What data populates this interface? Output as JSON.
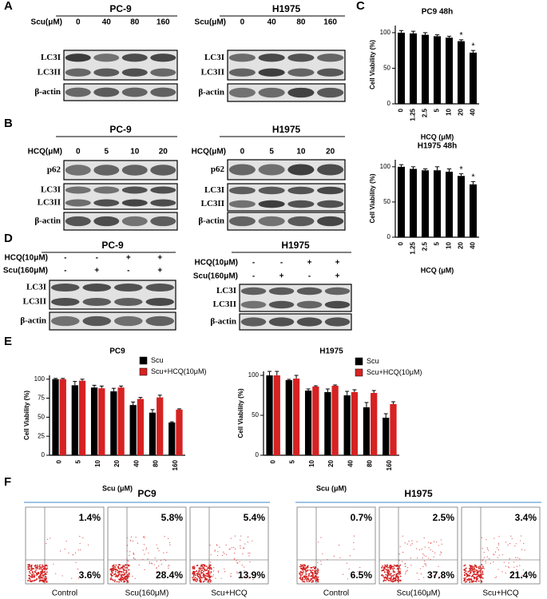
{
  "figure": {
    "panel_labels": [
      "A",
      "B",
      "C",
      "D",
      "E",
      "F"
    ],
    "blots": [
      {
        "title": "PC-9",
        "treatments": [
          {
            "label": "Scu(μM)",
            "levels": [
              "0",
              "40",
              "80",
              "160"
            ]
          }
        ],
        "rows": [
          [
            "LC3I",
            "LC3II"
          ],
          [
            "β-actin"
          ]
        ]
      },
      {
        "title": "H1975",
        "treatments": [
          {
            "label": "Scu(μM)",
            "levels": [
              "0",
              "40",
              "80",
              "160"
            ]
          }
        ],
        "rows": [
          [
            "LC3I",
            "LC3II"
          ],
          [
            "β-actin"
          ]
        ]
      },
      {
        "title": "PC-9",
        "treatments": [
          {
            "label": "HCQ(μM)",
            "levels": [
              "0",
              "5",
              "10",
              "20"
            ]
          }
        ],
        "rows": [
          [
            "p62"
          ],
          [
            "LC3I",
            "LC3II"
          ],
          [
            "β-actin"
          ]
        ]
      },
      {
        "title": "H1975",
        "treatments": [
          {
            "label": "HCQ(μM)",
            "levels": [
              "0",
              "5",
              "10",
              "20"
            ]
          }
        ],
        "rows": [
          [
            "p62"
          ],
          [
            "LC3I",
            "LC3II"
          ],
          [
            "β-actin"
          ]
        ]
      },
      {
        "title": "PC-9",
        "treatments": [
          {
            "label": "HCQ(10μM)",
            "levels": [
              "-",
              "-",
              "+",
              "+"
            ]
          },
          {
            "label": "Scu(160μM)",
            "levels": [
              "-",
              "+",
              "-",
              "+"
            ]
          }
        ],
        "rows": [
          [
            "LC3I",
            "LC3II"
          ],
          [
            "β-actin"
          ]
        ]
      },
      {
        "title": "H1975",
        "treatments": [
          {
            "label": "HCQ(10μM)",
            "levels": [
              "-",
              "-",
              "+",
              "+"
            ]
          },
          {
            "label": "Scu(160μM)",
            "levels": [
              "-",
              "+",
              "-",
              "+"
            ]
          }
        ],
        "rows": [
          [
            "LC3I",
            "LC3II"
          ],
          [
            "β-actin"
          ]
        ]
      }
    ],
    "flow": [
      {
        "title": "PC9",
        "plots": [
          {
            "label": "Control",
            "upper": "1.4%",
            "lower": "3.6%"
          },
          {
            "label": "Scu(160μM)",
            "upper": "5.8%",
            "lower": "28.4%"
          },
          {
            "label": "Scu+HCQ",
            "upper": "5.4%",
            "lower": "13.9%"
          }
        ]
      },
      {
        "title": "H1975",
        "plots": [
          {
            "label": "Control",
            "upper": "0.7%",
            "lower": "6.5%"
          },
          {
            "label": "Scu(160μM)",
            "upper": "2.5%",
            "lower": "37.8%"
          },
          {
            "label": "Scu+HCQ",
            "upper": "3.4%",
            "lower": "21.4%"
          }
        ]
      }
    ]
  },
  "chart_data": [
    {
      "type": "bar",
      "title": "PC9  48h",
      "categories": [
        "0",
        "1.25",
        "2.5",
        "5",
        "10",
        "20",
        "40"
      ],
      "values": [
        100,
        99,
        97,
        95,
        93,
        88,
        72
      ],
      "errors": [
        3,
        3,
        3,
        2,
        2,
        2,
        3
      ],
      "color": "#000000",
      "ylim": [
        0,
        110
      ],
      "yticks": [
        0,
        50,
        100
      ],
      "ylabel": "Cell Viability (%)",
      "xlabel": "HCQ (μM)",
      "annotations": [
        {
          "text": "*",
          "x": "20"
        },
        {
          "text": "*",
          "x": "40"
        }
      ]
    },
    {
      "type": "bar",
      "title": "H1975  48h",
      "categories": [
        "0",
        "1.25",
        "2.5",
        "5",
        "10",
        "20",
        "40"
      ],
      "values": [
        100,
        97,
        95,
        95,
        93,
        87,
        75
      ],
      "errors": [
        3,
        3,
        2,
        5,
        4,
        3,
        4
      ],
      "color": "#000000",
      "ylim": [
        0,
        110
      ],
      "yticks": [
        0,
        50,
        100
      ],
      "ylabel": "Cell Viability (%)",
      "xlabel": "HCQ (μM)",
      "annotations": [
        {
          "text": "*",
          "x": "20"
        },
        {
          "text": "*",
          "x": "40"
        }
      ]
    },
    {
      "type": "bar",
      "title": "PC9",
      "categories": [
        "0",
        "5",
        "10",
        "20",
        "40",
        "80",
        "160"
      ],
      "series": [
        {
          "name": "Scu",
          "color": "#000000",
          "values": [
            100,
            92,
            89,
            84,
            66,
            56,
            43
          ],
          "errors": [
            1,
            5,
            3,
            4,
            4,
            4,
            1
          ]
        },
        {
          "name": "Scu+HCQ(10μM)",
          "color": "#d62222",
          "values": [
            100,
            98,
            88,
            89,
            74,
            76,
            60
          ],
          "errors": [
            1,
            2,
            3,
            2,
            2,
            3,
            1
          ]
        }
      ],
      "ylim": [
        0,
        105
      ],
      "yticks": [
        0,
        25,
        50,
        75,
        100
      ],
      "ylabel": "Cell Viability (%)",
      "xlabel": "Scu (μM)",
      "legend": "top-right"
    },
    {
      "type": "bar",
      "title": "H1975",
      "categories": [
        "0",
        "5",
        "10",
        "20",
        "40",
        "80",
        "160"
      ],
      "series": [
        {
          "name": "Scu",
          "color": "#000000",
          "values": [
            100,
            94,
            81,
            79,
            75,
            60,
            47
          ],
          "errors": [
            5,
            1,
            2,
            4,
            5,
            6,
            5
          ]
        },
        {
          "name": "Scu+HCQ(10μM)",
          "color": "#d62222",
          "values": [
            100,
            96,
            86,
            87,
            79,
            78,
            64
          ],
          "errors": [
            5,
            4,
            1,
            1,
            3,
            3,
            3
          ]
        }
      ],
      "ylim": [
        0,
        105
      ],
      "yticks": [
        0,
        50,
        100
      ],
      "ylabel": "Cell Viability (%)",
      "xlabel": "Scu (μM)",
      "legend": "top-right"
    }
  ]
}
